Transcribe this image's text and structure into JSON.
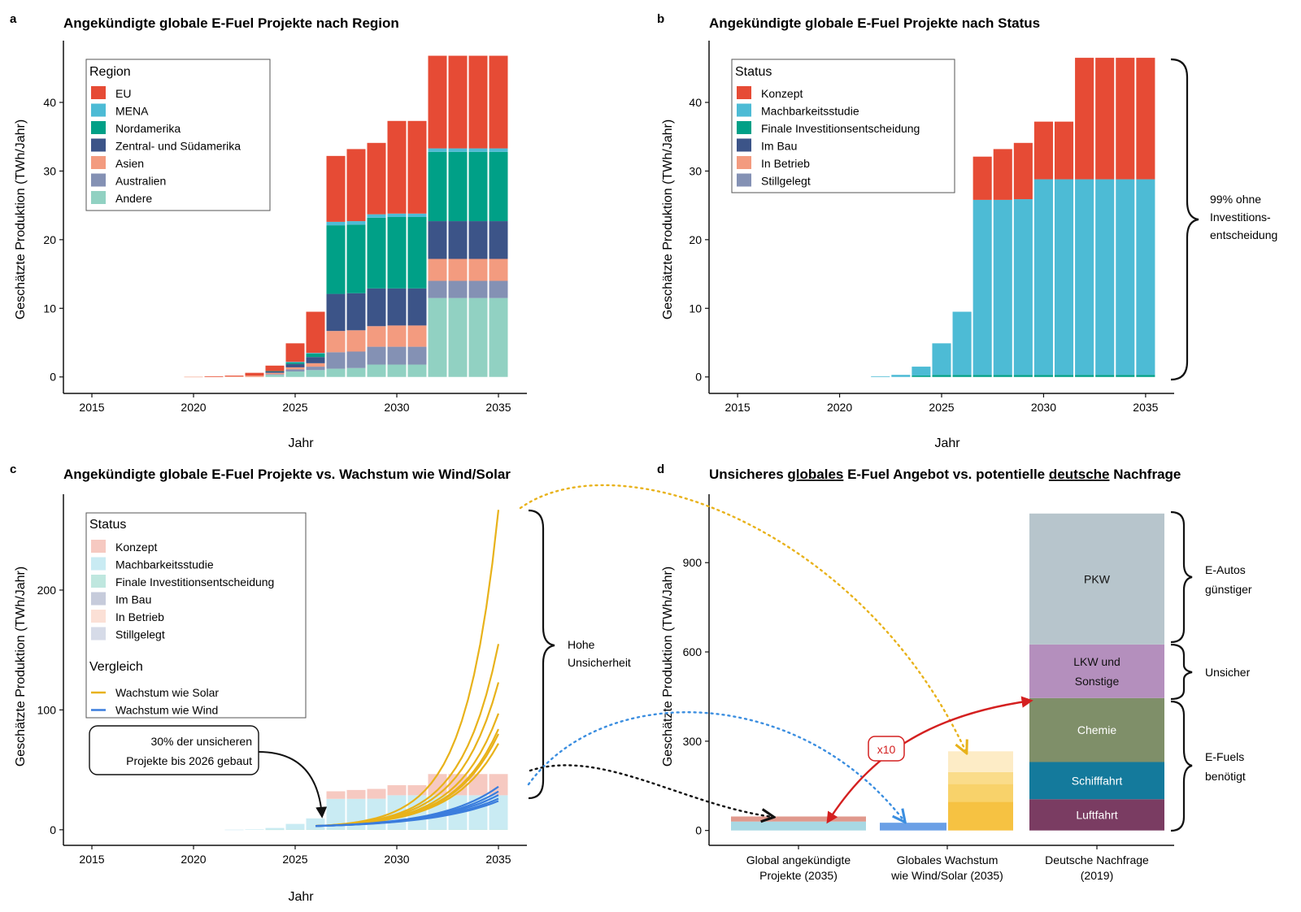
{
  "panels": {
    "a": {
      "letter": "a",
      "title": "Angekündigte globale E-Fuel Projekte nach Region",
      "ylabel": "Geschätzte Produktion (TWh/Jahr)",
      "xlabel": "Jahr",
      "legend_title": "Region"
    },
    "b": {
      "letter": "b",
      "title": "Angekündigte globale E-Fuel Projekte nach Status",
      "ylabel": "Geschätzte Produktion (TWh/Jahr)",
      "xlabel": "Jahr",
      "legend_title": "Status",
      "brace_label": [
        "99% ohne",
        "Investitions-",
        "entscheidung"
      ]
    },
    "c": {
      "letter": "c",
      "title": "Angekündigte globale E-Fuel Projekte vs. Wachstum wie Wind/Solar",
      "ylabel": "Geschätzte Produktion (TWh/Jahr)",
      "xlabel": "Jahr",
      "legend_title": "Status",
      "legend_title2": "Vergleich",
      "brace_label": [
        "Hohe",
        "Unsicherheit"
      ],
      "callout": [
        "30% der unsicheren",
        "Projekte bis 2026 gebaut"
      ]
    },
    "d": {
      "letter": "d",
      "title_parts": [
        "Unsicheres ",
        "globales",
        " E-Fuel Angebot vs. potentielle ",
        "deutsche",
        " Nachfrage"
      ],
      "ylabel": "Geschätzte Produktion (TWh/Jahr)",
      "multiplier_label": "x10",
      "brace_labels": [
        [
          "E-Autos",
          "günstiger"
        ],
        [
          "Unsicher"
        ],
        [
          "E-Fuels",
          "benötigt"
        ]
      ]
    }
  },
  "chart_data": [
    {
      "panel": "a",
      "type": "bar",
      "stacked": true,
      "x": [
        2015,
        2016,
        2017,
        2018,
        2019,
        2020,
        2021,
        2022,
        2023,
        2024,
        2025,
        2026,
        2027,
        2028,
        2029,
        2030,
        2031,
        2032,
        2033,
        2034,
        2035
      ],
      "x_ticks": [
        2015,
        2020,
        2025,
        2030,
        2035
      ],
      "y_ticks": [
        0,
        10,
        20,
        30,
        40
      ],
      "ylim": [
        -2.4,
        49
      ],
      "legend_position": "top-left",
      "series": [
        {
          "name": "Andere",
          "color": "#91d1c2",
          "values": [
            0,
            0,
            0,
            0,
            0,
            0,
            0,
            0,
            0,
            0.3,
            0.8,
            1.0,
            1.2,
            1.3,
            1.8,
            1.8,
            1.8,
            11.5,
            11.5,
            11.5,
            11.5
          ]
        },
        {
          "name": "Australien",
          "color": "#8491b4",
          "values": [
            0,
            0,
            0,
            0,
            0,
            0,
            0,
            0,
            0,
            0.1,
            0.3,
            0.5,
            2.4,
            2.4,
            2.6,
            2.6,
            2.6,
            2.5,
            2.5,
            2.5,
            2.5
          ]
        },
        {
          "name": "Asien",
          "color": "#f39b7f",
          "values": [
            0,
            0,
            0,
            0,
            0,
            0.02,
            0.05,
            0.1,
            0.2,
            0.2,
            0.3,
            0.5,
            3.1,
            3.1,
            3.0,
            3.1,
            3.1,
            3.2,
            3.2,
            3.2,
            3.2
          ]
        },
        {
          "name": "Zentral- und Südamerika",
          "color": "#3c5488",
          "values": [
            0,
            0,
            0,
            0,
            0,
            0,
            0,
            0,
            0,
            0.2,
            0.5,
            0.9,
            5.4,
            5.4,
            5.5,
            5.4,
            5.4,
            5.5,
            5.5,
            5.5,
            5.5
          ]
        },
        {
          "name": "Nordamerika",
          "color": "#00a087",
          "values": [
            0,
            0,
            0,
            0,
            0,
            0,
            0,
            0,
            0,
            0.05,
            0.2,
            0.5,
            10.0,
            10.0,
            10.3,
            10.4,
            10.4,
            10.1,
            10.1,
            10.1,
            10.1
          ]
        },
        {
          "name": "MENA",
          "color": "#4dbbd5",
          "values": [
            0,
            0,
            0,
            0,
            0,
            0,
            0,
            0,
            0,
            0,
            0.1,
            0.1,
            0.5,
            0.5,
            0.5,
            0.5,
            0.5,
            0.5,
            0.5,
            0.5,
            0.5
          ]
        },
        {
          "name": "EU",
          "color": "#e64b35",
          "values": [
            0,
            0,
            0,
            0,
            0,
            0,
            0.05,
            0.1,
            0.4,
            0.8,
            2.7,
            6.0,
            9.6,
            10.5,
            10.4,
            13.5,
            13.5,
            13.5,
            13.5,
            13.5,
            13.5
          ]
        }
      ],
      "legend_order": [
        "EU",
        "MENA",
        "Nordamerika",
        "Zentral- und Südamerika",
        "Asien",
        "Australien",
        "Andere"
      ]
    },
    {
      "panel": "b",
      "type": "bar",
      "stacked": true,
      "x": [
        2015,
        2016,
        2017,
        2018,
        2019,
        2020,
        2021,
        2022,
        2023,
        2024,
        2025,
        2026,
        2027,
        2028,
        2029,
        2030,
        2031,
        2032,
        2033,
        2034,
        2035
      ],
      "x_ticks": [
        2015,
        2020,
        2025,
        2030,
        2035
      ],
      "y_ticks": [
        0,
        10,
        20,
        30,
        40
      ],
      "ylim": [
        -2.4,
        49
      ],
      "legend_position": "top-left",
      "series": [
        {
          "name": "Stillgelegt",
          "color": "#8491b4",
          "values": [
            0,
            0,
            0,
            0,
            0,
            0,
            0,
            0,
            0,
            0,
            0,
            0,
            0,
            0,
            0,
            0,
            0,
            0,
            0,
            0,
            0
          ]
        },
        {
          "name": "In Betrieb",
          "color": "#f39b7f",
          "values": [
            0,
            0,
            0,
            0,
            0,
            0,
            0,
            0,
            0,
            0,
            0,
            0,
            0,
            0,
            0,
            0,
            0,
            0,
            0,
            0,
            0
          ]
        },
        {
          "name": "Im Bau",
          "color": "#3c5488",
          "values": [
            0,
            0,
            0,
            0,
            0,
            0,
            0,
            0,
            0,
            0,
            0,
            0,
            0,
            0,
            0,
            0,
            0,
            0,
            0,
            0,
            0
          ]
        },
        {
          "name": "Finale Investitionsentscheidung",
          "color": "#00a087",
          "values": [
            0,
            0,
            0,
            0,
            0,
            0,
            0,
            0,
            0,
            0.2,
            0.3,
            0.3,
            0.3,
            0.3,
            0.3,
            0.3,
            0.3,
            0.3,
            0.3,
            0.3,
            0.3
          ]
        },
        {
          "name": "Machbarkeitsstudie",
          "color": "#4dbbd5",
          "values": [
            0,
            0,
            0,
            0,
            0,
            0,
            0,
            0.1,
            0.3,
            1.3,
            4.6,
            9.2,
            25.5,
            25.5,
            25.6,
            28.5,
            28.5,
            28.5,
            28.5,
            28.5,
            28.5
          ]
        },
        {
          "name": "Konzept",
          "color": "#e64b35",
          "values": [
            0,
            0,
            0,
            0,
            0,
            0,
            0,
            0,
            0,
            0,
            0,
            0,
            6.3,
            7.4,
            8.2,
            8.4,
            8.4,
            17.7,
            17.7,
            17.7,
            17.7
          ]
        }
      ],
      "legend_order": [
        "Konzept",
        "Machbarkeitsstudie",
        "Finale Investitionsentscheidung",
        "Im Bau",
        "In Betrieb",
        "Stillgelegt"
      ]
    },
    {
      "panel": "c",
      "type": "bar",
      "stacked": true,
      "x": [
        2015,
        2016,
        2017,
        2018,
        2019,
        2020,
        2021,
        2022,
        2023,
        2024,
        2025,
        2026,
        2027,
        2028,
        2029,
        2030,
        2031,
        2032,
        2033,
        2034,
        2035
      ],
      "x_ticks": [
        2015,
        2020,
        2025,
        2030,
        2035
      ],
      "y_ticks": [
        0,
        100,
        200
      ],
      "ylim": [
        -13,
        280
      ],
      "legend_position": "top-left",
      "series": [
        {
          "name": "Stillgelegt",
          "color": "#d6dbe8",
          "values": [
            0,
            0,
            0,
            0,
            0,
            0,
            0,
            0,
            0,
            0,
            0,
            0,
            0,
            0,
            0,
            0,
            0,
            0,
            0,
            0,
            0
          ]
        },
        {
          "name": "In Betrieb",
          "color": "#fbe0d6",
          "values": [
            0,
            0,
            0,
            0,
            0,
            0,
            0,
            0,
            0,
            0,
            0,
            0,
            0,
            0,
            0,
            0,
            0,
            0,
            0,
            0,
            0
          ]
        },
        {
          "name": "Im Bau",
          "color": "#c6cbdb",
          "values": [
            0,
            0,
            0,
            0,
            0,
            0,
            0,
            0,
            0,
            0,
            0,
            0,
            0,
            0,
            0,
            0,
            0,
            0,
            0,
            0,
            0
          ]
        },
        {
          "name": "Finale Investitionsentscheidung",
          "color": "#bfe7df",
          "values": [
            0,
            0,
            0,
            0,
            0,
            0,
            0,
            0,
            0,
            0.2,
            0.3,
            0.3,
            0.3,
            0.3,
            0.3,
            0.3,
            0.3,
            0.3,
            0.3,
            0.3,
            0.3
          ]
        },
        {
          "name": "Machbarkeitsstudie",
          "color": "#c9ebf3",
          "values": [
            0,
            0,
            0,
            0,
            0,
            0,
            0,
            0.1,
            0.3,
            1.3,
            4.6,
            9.2,
            25.5,
            25.5,
            25.6,
            28.5,
            28.5,
            28.5,
            28.5,
            28.5,
            28.5
          ]
        },
        {
          "name": "Konzept",
          "color": "#f6c9c1",
          "values": [
            0,
            0,
            0,
            0,
            0,
            0,
            0,
            0,
            0,
            0,
            0,
            0,
            6.3,
            7.4,
            8.2,
            8.4,
            8.4,
            17.7,
            17.7,
            17.7,
            17.7
          ]
        }
      ],
      "legend_order": [
        "Konzept",
        "Machbarkeitsstudie",
        "Finale Investitionsentscheidung",
        "Im Bau",
        "In Betrieb",
        "Stillgelegt"
      ],
      "lines": [
        {
          "group": "Wachstum wie Solar",
          "color": "#e8b21a",
          "start": [
            2026,
            3.2
          ],
          "end_values": [
            267,
            155,
            123,
            97,
            84,
            80,
            72
          ]
        },
        {
          "group": "Wachstum wie Wind",
          "color": "#3b7ddd",
          "start": [
            2026,
            3.2
          ],
          "end_values": [
            36,
            32,
            29,
            26,
            24
          ]
        }
      ],
      "line_legend": [
        {
          "name": "Wachstum wie Solar",
          "color": "#e8b21a"
        },
        {
          "name": "Wachstum wie Wind",
          "color": "#3b7ddd"
        }
      ]
    },
    {
      "panel": "d",
      "type": "bar",
      "stacked": true,
      "categories": [
        [
          "Global angekündigte",
          "Projekte (2035)"
        ],
        [
          "Globales Wachstum",
          "wie Wind/Solar (2035)"
        ],
        [
          "Deutsche Nachfrage",
          "(2019)"
        ]
      ],
      "y_ticks": [
        0,
        300,
        600,
        900
      ],
      "ylim": [
        -50,
        1130
      ],
      "bars": [
        {
          "segments": [
            {
              "value": 30,
              "color": "#a8d8e3",
              "label": ""
            },
            {
              "value": 17,
              "color": "#e0998d",
              "label": ""
            }
          ]
        },
        {
          "segments": [
            {
              "value": 26,
              "color": "#6a9fe6",
              "label": ""
            }
          ]
        },
        {
          "segments": [
            {
              "value": 96,
              "color": "#f6c242",
              "label": ""
            },
            {
              "value": 60,
              "color": "#f8d26a",
              "label": ""
            },
            {
              "value": 40,
              "color": "#fadc8a",
              "label": ""
            },
            {
              "value": 70,
              "color": "#fdecc6",
              "label": ""
            }
          ]
        },
        {
          "segments": [
            {
              "value": 105,
              "color": "#7a3c62",
              "label": "Luftfahrt"
            },
            {
              "value": 125,
              "color": "#147a9c",
              "label": "Schifffahrt"
            },
            {
              "value": 215,
              "color": "#7f8f69",
              "label": "Chemie"
            },
            {
              "value": 180,
              "color": "#b48fbd",
              "label": "LKW und Sonstige"
            },
            {
              "value": 440,
              "color": "#b7c5cc",
              "label": "PKW"
            }
          ]
        }
      ]
    }
  ]
}
